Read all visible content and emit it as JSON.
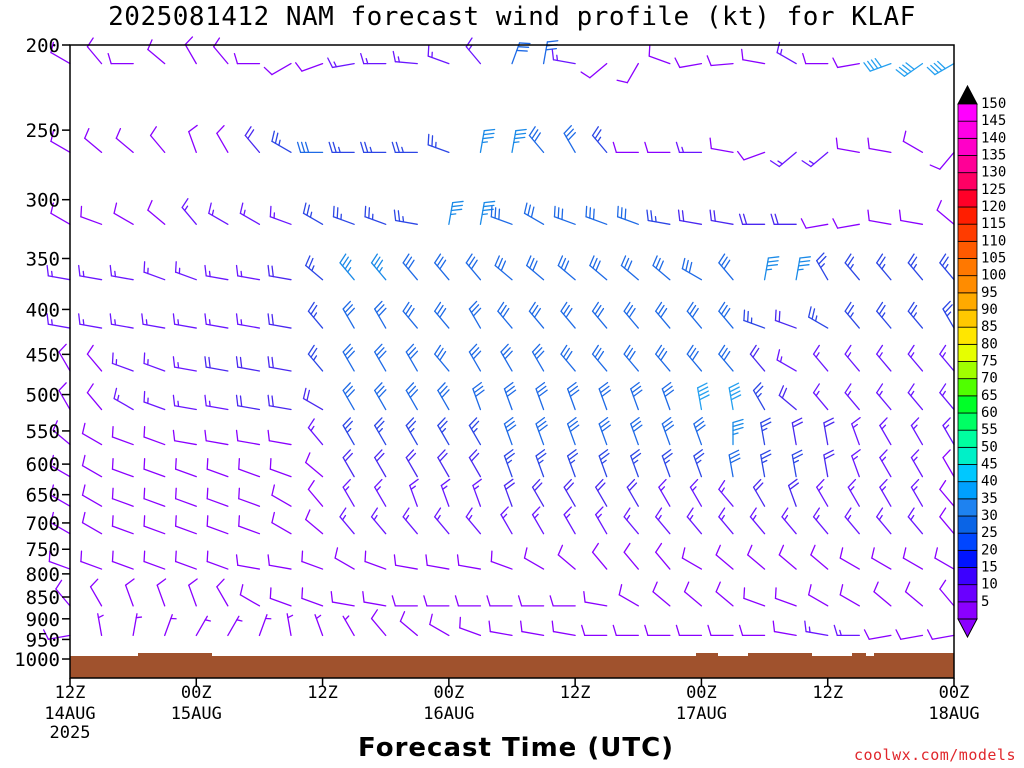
{
  "title": "2025081412 NAM forecast wind profile (kt) for KLAF",
  "credit": "coolwx.com/models",
  "chart_data": {
    "type": "wind_barb_profile",
    "title": "2025081412 NAM forecast wind profile (kt) for KLAF",
    "xlabel": "Forecast Time (UTC)",
    "ylabel": "",
    "y_scale": "log-pressure",
    "y_axis_label_units": "hPa",
    "y_ticks": [
      200,
      250,
      300,
      350,
      400,
      450,
      500,
      550,
      600,
      650,
      700,
      750,
      800,
      850,
      900,
      950,
      1000
    ],
    "ylim": [
      1013,
      200
    ],
    "x_ticks": [
      {
        "hour": 0,
        "label": "12Z",
        "date": "14AUG",
        "year": "2025"
      },
      {
        "hour": 12,
        "label": "00Z",
        "date": "15AUG",
        "year": ""
      },
      {
        "hour": 24,
        "label": "12Z",
        "date": "",
        "year": ""
      },
      {
        "hour": 36,
        "label": "00Z",
        "date": "16AUG",
        "year": ""
      },
      {
        "hour": 48,
        "label": "12Z",
        "date": "",
        "year": ""
      },
      {
        "hour": 60,
        "label": "00Z",
        "date": "17AUG",
        "year": ""
      },
      {
        "hour": 72,
        "label": "12Z",
        "date": "",
        "year": ""
      },
      {
        "hour": 84,
        "label": "00Z",
        "date": "18AUG",
        "year": ""
      }
    ],
    "xlim": [
      0,
      84
    ],
    "colorbar_levels": [
      5,
      10,
      15,
      20,
      25,
      30,
      35,
      40,
      45,
      50,
      55,
      60,
      65,
      70,
      75,
      80,
      85,
      90,
      95,
      100,
      105,
      110,
      115,
      120,
      125,
      130,
      135,
      140,
      145,
      150
    ],
    "colorbar_colors": [
      "#8b00ff",
      "#6a00ff",
      "#3c00ff",
      "#0014ff",
      "#0046ff",
      "#0a64e6",
      "#1e82f0",
      "#00a0ff",
      "#00c8ff",
      "#00f0c8",
      "#00ffa0",
      "#00ff64",
      "#00ff28",
      "#50ff00",
      "#a0ff00",
      "#e6ff00",
      "#ffe600",
      "#ffc800",
      "#ffaa00",
      "#ff8c00",
      "#ff7800",
      "#ff5a00",
      "#ff3c00",
      "#ff1e00",
      "#ff0028",
      "#ff0064",
      "#ff0096",
      "#ff00c8",
      "#ff00e6",
      "#ff00ff"
    ],
    "terrain_color": "#a0522d",
    "forecast_hours": [
      0,
      3,
      6,
      9,
      12,
      15,
      18,
      21,
      24,
      27,
      30,
      33,
      36,
      39,
      42,
      45,
      48,
      51,
      54,
      57,
      60,
      63,
      66,
      69,
      72,
      75,
      78,
      81,
      84
    ],
    "levels": [
      {
        "p": 210,
        "dir": [
          300,
          320,
          270,
          310,
          330,
          320,
          270,
          240,
          250,
          260,
          270,
          275,
          290,
          320,
          20,
          10,
          280,
          230,
          210,
          290,
          260,
          265,
          280,
          300,
          270,
          260,
          250,
          235,
          240
        ],
        "spd": [
          10,
          10,
          10,
          10,
          10,
          10,
          10,
          10,
          10,
          15,
          15,
          15,
          15,
          15,
          30,
          30,
          15,
          10,
          10,
          10,
          10,
          10,
          10,
          15,
          10,
          10,
          40,
          40,
          40
        ]
      },
      {
        "p": 265,
        "dir": [
          300,
          310,
          310,
          320,
          340,
          330,
          320,
          300,
          270,
          270,
          270,
          270,
          290,
          10,
          10,
          320,
          330,
          320,
          270,
          270,
          270,
          280,
          250,
          230,
          230,
          280,
          280,
          300,
          220
        ],
        "spd": [
          10,
          10,
          10,
          10,
          10,
          10,
          20,
          25,
          30,
          25,
          25,
          25,
          25,
          35,
          35,
          30,
          30,
          25,
          10,
          10,
          15,
          10,
          10,
          15,
          15,
          10,
          10,
          10,
          10
        ]
      },
      {
        "p": 320,
        "dir": [
          300,
          290,
          300,
          310,
          320,
          300,
          300,
          290,
          300,
          290,
          290,
          280,
          10,
          10,
          290,
          300,
          290,
          290,
          290,
          280,
          280,
          280,
          270,
          270,
          260,
          260,
          280,
          280,
          310
        ],
        "spd": [
          10,
          10,
          10,
          10,
          15,
          15,
          15,
          15,
          25,
          25,
          25,
          25,
          35,
          35,
          30,
          30,
          30,
          30,
          30,
          25,
          20,
          20,
          20,
          20,
          10,
          10,
          10,
          10,
          10
        ]
      },
      {
        "p": 370,
        "dir": [
          280,
          280,
          280,
          290,
          290,
          280,
          280,
          280,
          310,
          320,
          320,
          320,
          320,
          320,
          310,
          310,
          310,
          310,
          310,
          310,
          300,
          320,
          10,
          10,
          330,
          320,
          320,
          320,
          320
        ],
        "spd": [
          15,
          15,
          15,
          15,
          15,
          15,
          15,
          20,
          25,
          35,
          35,
          30,
          30,
          30,
          30,
          30,
          30,
          30,
          30,
          30,
          30,
          30,
          35,
          35,
          25,
          25,
          25,
          25,
          25
        ]
      },
      {
        "p": 420,
        "dir": [
          280,
          280,
          280,
          280,
          280,
          280,
          280,
          280,
          320,
          330,
          330,
          320,
          320,
          330,
          320,
          320,
          320,
          320,
          320,
          320,
          320,
          320,
          290,
          290,
          300,
          320,
          320,
          320,
          330
        ],
        "spd": [
          15,
          15,
          15,
          15,
          15,
          15,
          15,
          20,
          25,
          30,
          30,
          30,
          30,
          30,
          30,
          30,
          30,
          30,
          30,
          30,
          30,
          30,
          25,
          20,
          25,
          25,
          25,
          25,
          25
        ]
      },
      {
        "p": 470,
        "dir": [
          330,
          320,
          290,
          290,
          280,
          280,
          280,
          280,
          320,
          330,
          330,
          330,
          320,
          330,
          330,
          330,
          320,
          320,
          320,
          320,
          320,
          320,
          320,
          300,
          320,
          320,
          320,
          320,
          320
        ],
        "spd": [
          10,
          10,
          15,
          15,
          15,
          20,
          20,
          20,
          25,
          30,
          30,
          30,
          30,
          30,
          30,
          30,
          30,
          30,
          30,
          30,
          30,
          30,
          20,
          15,
          15,
          15,
          15,
          15,
          15
        ]
      },
      {
        "p": 520,
        "dir": [
          330,
          320,
          300,
          290,
          280,
          280,
          280,
          280,
          300,
          330,
          330,
          330,
          330,
          340,
          340,
          340,
          340,
          340,
          340,
          340,
          350,
          350,
          330,
          310,
          320,
          320,
          320,
          320,
          320
        ],
        "spd": [
          10,
          10,
          15,
          15,
          15,
          15,
          20,
          20,
          20,
          30,
          30,
          30,
          30,
          30,
          30,
          30,
          30,
          30,
          30,
          30,
          40,
          40,
          25,
          20,
          15,
          15,
          15,
          15,
          15
        ]
      },
      {
        "p": 570,
        "dir": [
          310,
          300,
          290,
          290,
          280,
          280,
          280,
          280,
          320,
          330,
          330,
          330,
          330,
          330,
          340,
          340,
          340,
          340,
          340,
          340,
          340,
          0,
          350,
          350,
          350,
          340,
          330,
          330,
          330
        ],
        "spd": [
          10,
          10,
          10,
          10,
          10,
          10,
          10,
          10,
          15,
          25,
          25,
          25,
          25,
          25,
          30,
          30,
          30,
          30,
          30,
          30,
          30,
          35,
          25,
          20,
          20,
          15,
          15,
          15,
          15
        ]
      },
      {
        "p": 620,
        "dir": [
          300,
          300,
          290,
          290,
          290,
          290,
          290,
          290,
          310,
          330,
          330,
          330,
          330,
          330,
          340,
          340,
          340,
          340,
          340,
          340,
          340,
          350,
          350,
          350,
          350,
          340,
          330,
          330,
          330
        ],
        "spd": [
          10,
          10,
          10,
          10,
          10,
          10,
          10,
          10,
          10,
          20,
          20,
          20,
          20,
          20,
          25,
          25,
          25,
          25,
          25,
          25,
          25,
          30,
          25,
          25,
          20,
          15,
          15,
          15,
          10
        ]
      },
      {
        "p": 670,
        "dir": [
          300,
          300,
          290,
          290,
          290,
          290,
          290,
          300,
          320,
          330,
          330,
          340,
          340,
          340,
          340,
          330,
          330,
          330,
          330,
          330,
          330,
          320,
          330,
          340,
          330,
          330,
          330,
          330,
          320
        ],
        "spd": [
          10,
          10,
          10,
          10,
          10,
          10,
          10,
          10,
          10,
          15,
          15,
          15,
          15,
          15,
          20,
          20,
          20,
          20,
          20,
          15,
          15,
          15,
          20,
          20,
          15,
          15,
          15,
          15,
          10
        ]
      },
      {
        "p": 720,
        "dir": [
          300,
          300,
          290,
          290,
          290,
          290,
          290,
          300,
          310,
          320,
          320,
          320,
          320,
          320,
          330,
          330,
          330,
          330,
          320,
          320,
          320,
          320,
          320,
          320,
          320,
          320,
          320,
          320,
          320
        ],
        "spd": [
          10,
          10,
          10,
          10,
          10,
          10,
          10,
          10,
          10,
          15,
          15,
          15,
          15,
          15,
          15,
          15,
          15,
          15,
          15,
          15,
          15,
          15,
          15,
          15,
          15,
          15,
          15,
          15,
          10
        ]
      },
      {
        "p": 790,
        "dir": [
          290,
          290,
          290,
          290,
          290,
          290,
          280,
          280,
          290,
          300,
          290,
          280,
          280,
          280,
          290,
          300,
          310,
          320,
          320,
          320,
          300,
          310,
          310,
          310,
          310,
          300,
          300,
          300,
          300
        ],
        "spd": [
          10,
          10,
          10,
          10,
          10,
          10,
          10,
          10,
          10,
          10,
          10,
          10,
          10,
          10,
          10,
          10,
          10,
          10,
          10,
          10,
          10,
          10,
          10,
          10,
          10,
          10,
          10,
          10,
          10
        ]
      },
      {
        "p": 870,
        "dir": [
          320,
          330,
          340,
          340,
          340,
          330,
          300,
          290,
          290,
          280,
          280,
          270,
          270,
          270,
          270,
          270,
          270,
          280,
          300,
          310,
          310,
          310,
          290,
          290,
          300,
          300,
          310,
          310,
          320
        ],
        "spd": [
          10,
          10,
          10,
          10,
          10,
          10,
          10,
          10,
          10,
          10,
          10,
          10,
          10,
          10,
          10,
          10,
          10,
          10,
          10,
          10,
          10,
          10,
          10,
          10,
          10,
          10,
          10,
          10,
          10
        ]
      },
      {
        "p": 940,
        "dir": [
          260,
          350,
          10,
          20,
          30,
          30,
          20,
          350,
          340,
          330,
          320,
          310,
          300,
          290,
          280,
          280,
          280,
          270,
          270,
          270,
          270,
          270,
          270,
          280,
          280,
          270,
          260,
          260,
          260
        ],
        "spd": [
          10,
          5,
          5,
          5,
          5,
          5,
          5,
          5,
          5,
          5,
          10,
          10,
          10,
          10,
          10,
          10,
          10,
          10,
          10,
          10,
          10,
          10,
          10,
          10,
          15,
          15,
          10,
          10,
          10
        ]
      }
    ]
  },
  "colorbar": {
    "labels": [
      "150",
      "145",
      "140",
      "135",
      "130",
      "125",
      "120",
      "115",
      "110",
      "105",
      "100",
      "95",
      "90",
      "85",
      "80",
      "75",
      "70",
      "65",
      "60",
      "55",
      "50",
      "45",
      "40",
      "35",
      "30",
      "25",
      "20",
      "15",
      "10",
      "5"
    ]
  }
}
